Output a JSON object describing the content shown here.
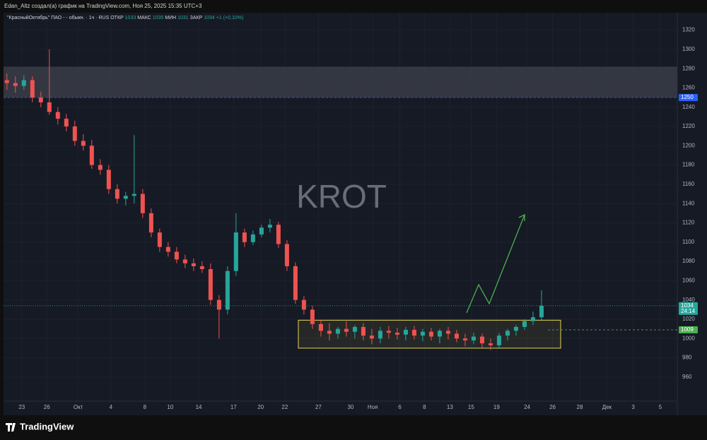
{
  "header": "Edan_Altz создал(а) график на TradingView.com, Ноя 25, 2025 15:35 UTC+3",
  "footer": "TradingView",
  "chart_data": {
    "type": "candlestick",
    "legend": {
      "symbol": "\"КрасныйОктябрь\" ПАО - - обыкн. · 1ч · RUS",
      "open_label": "ОТКР",
      "open": 1033,
      "high_label": "МАКС",
      "high": 1035,
      "low_label": "МИН",
      "low": 1031,
      "close_label": "ЗАКР",
      "close": 1034,
      "change": "+1 (+0,10%)"
    },
    "watermark": "KROT",
    "up_color": "#26a69a",
    "down_color": "#ef5350",
    "ylim": [
      935,
      1338
    ],
    "yticks": [
      960,
      980,
      1000,
      1020,
      1040,
      1060,
      1080,
      1100,
      1120,
      1140,
      1160,
      1180,
      1200,
      1220,
      1240,
      1260,
      1280,
      1300,
      1320
    ],
    "xlim": [
      -0.4,
      79
    ],
    "xticks": [
      {
        "value": 1.75,
        "label": "23"
      },
      {
        "value": 4.7,
        "label": "26"
      },
      {
        "value": 8.4,
        "label": "Окт"
      },
      {
        "value": 12.25,
        "label": "4"
      },
      {
        "value": 16.25,
        "label": "8"
      },
      {
        "value": 19.25,
        "label": "10"
      },
      {
        "value": 22.6,
        "label": "14"
      },
      {
        "value": 26.7,
        "label": "17"
      },
      {
        "value": 29.9,
        "label": "20"
      },
      {
        "value": 32.75,
        "label": "22"
      },
      {
        "value": 36.7,
        "label": "27"
      },
      {
        "value": 40.5,
        "label": "30"
      },
      {
        "value": 43.1,
        "label": "Ноя"
      },
      {
        "value": 46.3,
        "label": "6"
      },
      {
        "value": 49.2,
        "label": "8"
      },
      {
        "value": 52.2,
        "label": "13"
      },
      {
        "value": 54.7,
        "label": "15"
      },
      {
        "value": 57.7,
        "label": "19"
      },
      {
        "value": 61.3,
        "label": "24"
      },
      {
        "value": 64.3,
        "label": "26"
      },
      {
        "value": 67.5,
        "label": "28"
      },
      {
        "value": 70.7,
        "label": "Дек"
      },
      {
        "value": 73.8,
        "label": "3"
      },
      {
        "value": 77,
        "label": "5"
      }
    ],
    "open": [
      1268,
      1265,
      1262,
      1268,
      1250,
      1245,
      1235,
      1228,
      1220,
      1205,
      1200,
      1180,
      1175,
      1155,
      1145,
      1148,
      1150,
      1130,
      1110,
      1095,
      1090,
      1082,
      1078,
      1075,
      1072,
      1040,
      1030,
      1070,
      1110,
      1100,
      1108,
      1115,
      1118,
      1098,
      1075,
      1040,
      1030,
      1015,
      1008,
      1005,
      1010,
      1007,
      1012,
      1003,
      1000,
      1008,
      1006,
      1004,
      1009,
      1003,
      1007,
      1002,
      1008,
      1005,
      1000,
      998,
      1002,
      995,
      993,
      1003,
      1008,
      1012,
      1018,
      1022
    ],
    "high": [
      1275,
      1272,
      1273,
      1272,
      1256,
      1300,
      1240,
      1233,
      1226,
      1212,
      1206,
      1186,
      1180,
      1160,
      1152,
      1211,
      1155,
      1135,
      1114,
      1100,
      1095,
      1087,
      1083,
      1080,
      1078,
      1045,
      1075,
      1130,
      1114,
      1112,
      1118,
      1124,
      1121,
      1102,
      1079,
      1044,
      1034,
      1019,
      1016,
      1012,
      1018,
      1014,
      1016,
      1010,
      1012,
      1013,
      1011,
      1012,
      1013,
      1010,
      1011,
      1010,
      1012,
      1009,
      1005,
      1006,
      1005,
      1000,
      1006,
      1010,
      1014,
      1020,
      1028,
      1050
    ],
    "low": [
      1258,
      1255,
      1258,
      1245,
      1240,
      1232,
      1222,
      1215,
      1200,
      1195,
      1176,
      1170,
      1150,
      1140,
      1138,
      1140,
      1125,
      1105,
      1090,
      1085,
      1078,
      1073,
      1070,
      1068,
      1035,
      1000,
      1025,
      1065,
      1095,
      1097,
      1105,
      1110,
      1094,
      1070,
      1036,
      1025,
      1010,
      1002,
      998,
      1000,
      1002,
      1000,
      998,
      994,
      995,
      1000,
      999,
      998,
      999,
      997,
      998,
      995,
      999,
      996,
      992,
      994,
      990,
      988,
      990,
      998,
      1003,
      1009,
      1014,
      1018
    ],
    "close": [
      1265,
      1262,
      1268,
      1250,
      1245,
      1235,
      1228,
      1220,
      1205,
      1200,
      1180,
      1175,
      1155,
      1145,
      1148,
      1150,
      1130,
      1110,
      1095,
      1090,
      1082,
      1078,
      1075,
      1072,
      1040,
      1030,
      1070,
      1110,
      1100,
      1108,
      1115,
      1118,
      1098,
      1075,
      1040,
      1030,
      1015,
      1008,
      1005,
      1010,
      1007,
      1012,
      1003,
      1000,
      1008,
      1006,
      1004,
      1009,
      1003,
      1007,
      1002,
      1008,
      1005,
      1000,
      998,
      1002,
      995,
      993,
      1003,
      1008,
      1012,
      1018,
      1022,
      1034
    ],
    "zones": [
      {
        "from": 1250,
        "to": 1282,
        "color": "#3a3d47"
      },
      {
        "from": 990,
        "to": 1019,
        "color": "#e6d64a"
      }
    ],
    "price_lines": [
      {
        "value": 1250,
        "color": "#2962ff"
      },
      {
        "value": 1009,
        "color": "#4caf50"
      },
      {
        "value": 1034,
        "color": "#26a69a",
        "countdown": "24:14"
      }
    ]
  }
}
